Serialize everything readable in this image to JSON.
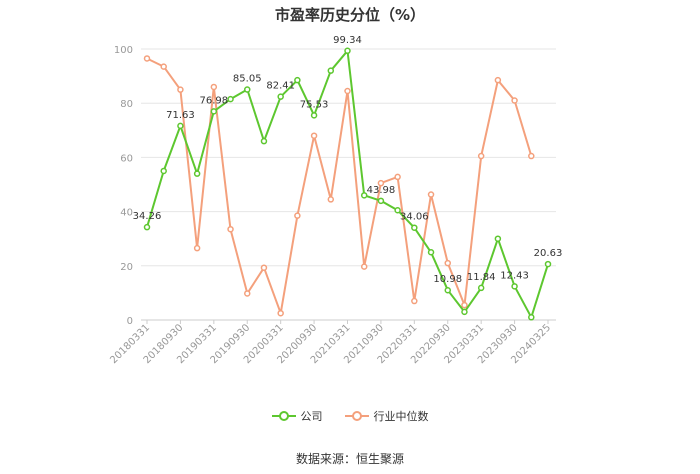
{
  "chart_data": {
    "type": "line",
    "title": "市盈率历史分位（%）",
    "ylim": [
      0,
      100
    ],
    "yticks": [
      0,
      20,
      40,
      60,
      80,
      100
    ],
    "x": [
      "20180331",
      "20180630",
      "20180930",
      "20181231",
      "20190331",
      "20190630",
      "20190930",
      "20191231",
      "20200331",
      "20200630",
      "20200930",
      "20201231",
      "20210331",
      "20210630",
      "20210930",
      "20211231",
      "20220331",
      "20220630",
      "20220930",
      "20221231",
      "20230331",
      "20230630",
      "20230930",
      "20231231",
      "20240325"
    ],
    "xtick_labels": [
      "20180331",
      "20180930",
      "20190331",
      "20190930",
      "20200331",
      "20200930",
      "20210331",
      "20210930",
      "20220331",
      "20220930",
      "20230331",
      "20230930",
      "20240325"
    ],
    "series": [
      {
        "name": "公司",
        "color": "#5dc72f",
        "values": [
          34.26,
          55,
          71.63,
          54,
          76.98,
          81.5,
          85.05,
          66,
          82.41,
          88.5,
          75.53,
          92,
          99.34,
          46,
          43.98,
          40.5,
          34.06,
          25,
          10.98,
          3,
          11.84,
          30,
          12.43,
          1,
          20.63
        ],
        "labels": {
          "0": "34.26",
          "2": "71.63",
          "4": "76.98",
          "6": "85.05",
          "8": "82.41",
          "10": "75.53",
          "12": "99.34",
          "14": "43.98",
          "16": "34.06",
          "18": "10.98",
          "20": "11.84",
          "22": "12.43",
          "24": "20.63"
        }
      },
      {
        "name": "行业中位数",
        "color": "#f4a07c",
        "values": [
          96.5,
          93.5,
          85,
          26.5,
          86,
          33.5,
          9.8,
          19.3,
          2.5,
          38.5,
          68,
          44.5,
          84.5,
          19.7,
          50.5,
          52.8,
          7,
          46.3,
          21,
          5.5,
          60.5,
          88.5,
          81,
          60.5,
          null
        ]
      }
    ],
    "legend": [
      "公司",
      "行业中位数"
    ],
    "legend_position": "bottom",
    "grid": true
  },
  "source_text": "数据来源：恒生聚源"
}
